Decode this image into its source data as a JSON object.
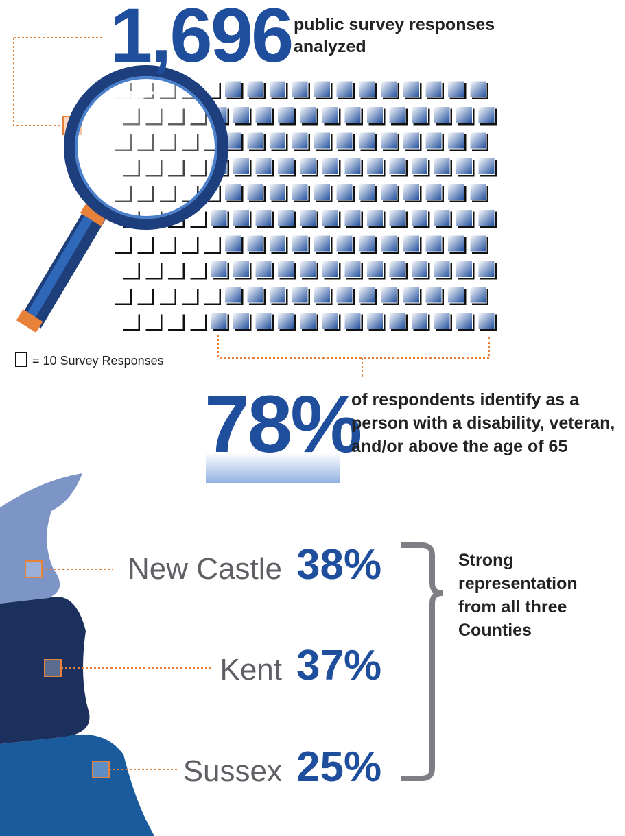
{
  "headline": {
    "number": "1,696",
    "text": "public survey responses analyzed"
  },
  "legend": "= 10 Survey Responses",
  "share": {
    "number": "78%",
    "text": "of respondents identify as a person with a disability, veteran, and/or above the age of 65"
  },
  "counties": [
    {
      "name": "New Castle",
      "percent": "38%"
    },
    {
      "name": "Kent",
      "percent": "37%"
    },
    {
      "name": "Sussex",
      "percent": "25%"
    }
  ],
  "summary": "Strong representation from all three Counties"
}
